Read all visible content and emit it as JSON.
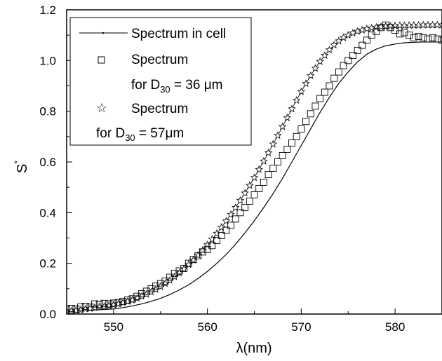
{
  "chart_data": {
    "type": "line",
    "xlabel": "λ(nm)",
    "ylabel": "S",
    "ylabel_superscript": "*",
    "xlim": [
      545,
      585
    ],
    "ylim": [
      0.0,
      1.2
    ],
    "x_ticks": [
      550,
      560,
      570,
      580
    ],
    "y_ticks": [
      0.0,
      0.2,
      0.4,
      0.6,
      0.8,
      1.0,
      1.2
    ],
    "y_tick_labels": [
      "0.0",
      "0.2",
      "0.4",
      "0.6",
      "0.8",
      "1.0",
      "1.2"
    ],
    "grid": false,
    "legend_position": "top-left",
    "legend": [
      {
        "line1": "Spectrum in cell"
      },
      {
        "line1": "Spectrum",
        "line2_prefix": "for D",
        "line2_sub": "30",
        "line2_suffix": " = 36 μm"
      },
      {
        "line1": "Spectrum",
        "line2_prefix": "for D",
        "line2_sub": "30",
        "line2_suffix": " = 57μm"
      }
    ],
    "series": [
      {
        "marker": "line",
        "x": [
          545,
          546,
          547,
          548,
          549,
          550,
          551,
          552,
          553,
          554,
          555,
          556,
          557,
          558,
          559,
          560,
          561,
          562,
          563,
          564,
          565,
          566,
          567,
          568,
          569,
          570,
          571,
          572,
          573,
          574,
          575,
          576,
          577,
          578,
          579,
          580,
          581,
          582,
          583,
          584,
          585
        ],
        "y": [
          0.01,
          0.012,
          0.014,
          0.016,
          0.018,
          0.02,
          0.025,
          0.032,
          0.04,
          0.05,
          0.062,
          0.077,
          0.095,
          0.115,
          0.14,
          0.168,
          0.2,
          0.235,
          0.275,
          0.32,
          0.368,
          0.42,
          0.475,
          0.535,
          0.6,
          0.665,
          0.73,
          0.795,
          0.855,
          0.91,
          0.955,
          0.995,
          1.025,
          1.045,
          1.058,
          1.065,
          1.07,
          1.072,
          1.073,
          1.073,
          1.073
        ]
      },
      {
        "marker": "square",
        "x": [
          545,
          545.5,
          546,
          546.5,
          547,
          547.5,
          548,
          548.5,
          549,
          549.5,
          550,
          550.5,
          551,
          551.5,
          552,
          552.5,
          553,
          553.5,
          554,
          554.5,
          555,
          555.5,
          556,
          556.5,
          557,
          557.5,
          558,
          558.5,
          559,
          559.5,
          560,
          560.5,
          561,
          561.5,
          562,
          562.5,
          563,
          563.5,
          564,
          564.5,
          565,
          565.5,
          566,
          566.5,
          567,
          567.5,
          568,
          568.5,
          569,
          569.5,
          570,
          570.5,
          571,
          571.5,
          572,
          572.5,
          573,
          573.5,
          574,
          574.5,
          575,
          575.5,
          576,
          576.5,
          577,
          577.5,
          578,
          578.5,
          579,
          579.5,
          580,
          580.5,
          581,
          581.5,
          582,
          582.5,
          583,
          583.5,
          584,
          584.5,
          585
        ],
        "y": [
          0.02,
          0.022,
          0.02,
          0.028,
          0.03,
          0.027,
          0.04,
          0.038,
          0.042,
          0.04,
          0.043,
          0.045,
          0.05,
          0.055,
          0.06,
          0.07,
          0.08,
          0.09,
          0.1,
          0.11,
          0.12,
          0.13,
          0.145,
          0.16,
          0.17,
          0.18,
          0.2,
          0.215,
          0.23,
          0.245,
          0.255,
          0.27,
          0.29,
          0.31,
          0.33,
          0.35,
          0.375,
          0.4,
          0.42,
          0.445,
          0.47,
          0.495,
          0.52,
          0.55,
          0.575,
          0.6,
          0.625,
          0.65,
          0.675,
          0.7,
          0.73,
          0.76,
          0.79,
          0.82,
          0.85,
          0.875,
          0.9,
          0.93,
          0.955,
          0.98,
          1.0,
          1.02,
          1.04,
          1.06,
          1.08,
          1.1,
          1.115,
          1.13,
          1.14,
          1.13,
          1.12,
          1.105,
          1.11,
          1.1,
          1.09,
          1.095,
          1.09,
          1.085,
          1.09,
          1.085,
          1.08
        ]
      },
      {
        "marker": "star",
        "x": [
          545,
          545.5,
          546,
          546.5,
          547,
          547.5,
          548,
          548.5,
          549,
          549.5,
          550,
          550.5,
          551,
          551.5,
          552,
          552.5,
          553,
          553.5,
          554,
          554.5,
          555,
          555.5,
          556,
          556.5,
          557,
          557.5,
          558,
          558.5,
          559,
          559.5,
          560,
          560.5,
          561,
          561.5,
          562,
          562.5,
          563,
          563.5,
          564,
          564.5,
          565,
          565.5,
          566,
          566.5,
          567,
          567.5,
          568,
          568.5,
          569,
          569.5,
          570,
          570.5,
          571,
          571.5,
          572,
          572.5,
          573,
          573.5,
          574,
          574.5,
          575,
          575.5,
          576,
          576.5,
          577,
          577.5,
          578,
          578.5,
          579,
          579.5,
          580,
          580.5,
          581,
          581.5,
          582,
          582.5,
          583,
          583.5,
          584,
          584.5,
          585
        ],
        "y": [
          0.01,
          0.012,
          0.014,
          0.016,
          0.02,
          0.022,
          0.025,
          0.028,
          0.03,
          0.033,
          0.036,
          0.04,
          0.045,
          0.05,
          0.055,
          0.062,
          0.07,
          0.078,
          0.087,
          0.097,
          0.108,
          0.12,
          0.133,
          0.147,
          0.162,
          0.178,
          0.195,
          0.213,
          0.232,
          0.252,
          0.273,
          0.295,
          0.318,
          0.342,
          0.367,
          0.393,
          0.42,
          0.448,
          0.477,
          0.507,
          0.538,
          0.57,
          0.603,
          0.636,
          0.67,
          0.704,
          0.739,
          0.774,
          0.809,
          0.843,
          0.877,
          0.909,
          0.94,
          0.969,
          0.996,
          1.02,
          1.042,
          1.061,
          1.077,
          1.09,
          1.1,
          1.108,
          1.115,
          1.12,
          1.125,
          1.128,
          1.131,
          1.133,
          1.135,
          1.136,
          1.137,
          1.138,
          1.138,
          1.139,
          1.139,
          1.139,
          1.14,
          1.14,
          1.14,
          1.14,
          1.14
        ]
      }
    ]
  }
}
